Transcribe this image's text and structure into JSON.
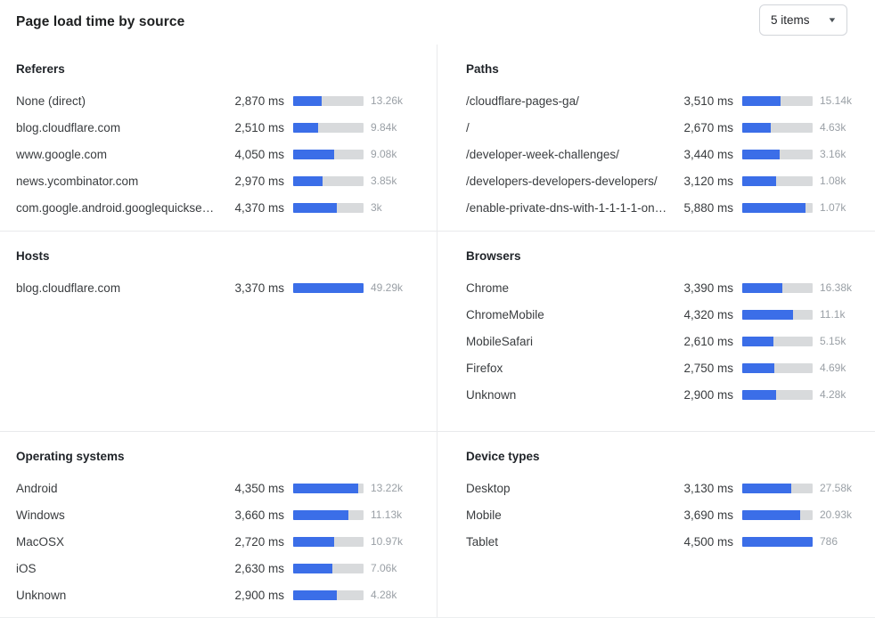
{
  "header": {
    "title": "Page load time by source",
    "dropdown": {
      "value": "5 items",
      "caret_icon": "▼"
    }
  },
  "colors": {
    "bar_fill": "#3b6ee8",
    "bar_track": "#d8dadc"
  },
  "sections": [
    {
      "title": "Referers",
      "rows": [
        {
          "label": "None (direct)",
          "ms": "2,870 ms",
          "count": "13.26k",
          "fill_pct": 41
        },
        {
          "label": "blog.cloudflare.com",
          "ms": "2,510 ms",
          "count": "9.84k",
          "fill_pct": 36
        },
        {
          "label": "www.google.com",
          "ms": "4,050 ms",
          "count": "9.08k",
          "fill_pct": 58
        },
        {
          "label": "news.ycombinator.com",
          "ms": "2,970 ms",
          "count": "3.85k",
          "fill_pct": 42
        },
        {
          "label": "com.google.android.googlequicksearc…",
          "ms": "4,370 ms",
          "count": "3k",
          "fill_pct": 62
        }
      ]
    },
    {
      "title": "Paths",
      "rows": [
        {
          "label": "/cloudflare-pages-ga/",
          "ms": "3,510 ms",
          "count": "15.14k",
          "fill_pct": 54
        },
        {
          "label": "/",
          "ms": "2,670 ms",
          "count": "4.63k",
          "fill_pct": 41
        },
        {
          "label": "/developer-week-challenges/",
          "ms": "3,440 ms",
          "count": "3.16k",
          "fill_pct": 53
        },
        {
          "label": "/developers-developers-developers/",
          "ms": "3,120 ms",
          "count": "1.08k",
          "fill_pct": 48
        },
        {
          "label": "/enable-private-dns-with-1-1-1-1-on-…",
          "ms": "5,880 ms",
          "count": "1.07k",
          "fill_pct": 90
        }
      ]
    },
    {
      "title": "Hosts",
      "rows": [
        {
          "label": "blog.cloudflare.com",
          "ms": "3,370 ms",
          "count": "49.29k",
          "fill_pct": 100
        }
      ]
    },
    {
      "title": "Browsers",
      "rows": [
        {
          "label": "Chrome",
          "ms": "3,390 ms",
          "count": "16.38k",
          "fill_pct": 57
        },
        {
          "label": "ChromeMobile",
          "ms": "4,320 ms",
          "count": "11.1k",
          "fill_pct": 72
        },
        {
          "label": "MobileSafari",
          "ms": "2,610 ms",
          "count": "5.15k",
          "fill_pct": 44
        },
        {
          "label": "Firefox",
          "ms": "2,750 ms",
          "count": "4.69k",
          "fill_pct": 46
        },
        {
          "label": "Unknown",
          "ms": "2,900 ms",
          "count": "4.28k",
          "fill_pct": 48
        }
      ]
    },
    {
      "title": "Operating systems",
      "rows": [
        {
          "label": "Android",
          "ms": "4,350 ms",
          "count": "13.22k",
          "fill_pct": 93
        },
        {
          "label": "Windows",
          "ms": "3,660 ms",
          "count": "11.13k",
          "fill_pct": 78
        },
        {
          "label": "MacOSX",
          "ms": "2,720 ms",
          "count": "10.97k",
          "fill_pct": 58
        },
        {
          "label": "iOS",
          "ms": "2,630 ms",
          "count": "7.06k",
          "fill_pct": 56
        },
        {
          "label": "Unknown",
          "ms": "2,900 ms",
          "count": "4.28k",
          "fill_pct": 62
        }
      ]
    },
    {
      "title": "Device types",
      "rows": [
        {
          "label": "Desktop",
          "ms": "3,130 ms",
          "count": "27.58k",
          "fill_pct": 70
        },
        {
          "label": "Mobile",
          "ms": "3,690 ms",
          "count": "20.93k",
          "fill_pct": 82
        },
        {
          "label": "Tablet",
          "ms": "4,500 ms",
          "count": "786",
          "fill_pct": 100
        }
      ]
    }
  ]
}
